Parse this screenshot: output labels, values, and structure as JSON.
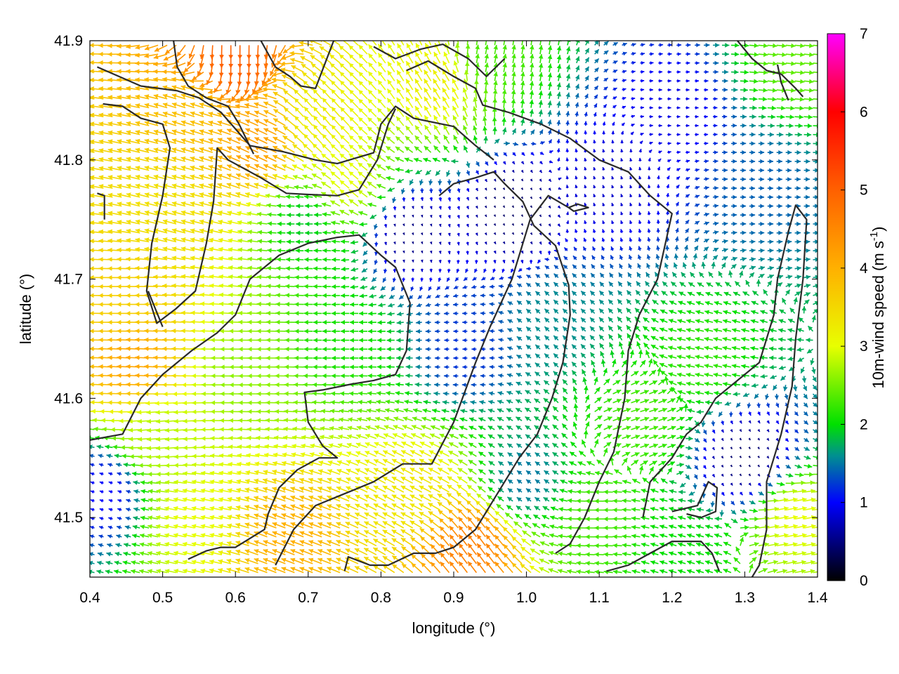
{
  "chart_data": {
    "type": "vector-field",
    "xlabel": "longitude (°)",
    "ylabel": "latitude (°)",
    "xlim": [
      0.4,
      1.4
    ],
    "ylim": [
      41.45,
      41.9
    ],
    "x_ticks": [
      {
        "value": 0.4,
        "label": "0.4"
      },
      {
        "value": 0.5,
        "label": "0.5"
      },
      {
        "value": 0.6,
        "label": "0.6"
      },
      {
        "value": 0.7,
        "label": "0.7"
      },
      {
        "value": 0.8,
        "label": "0.8"
      },
      {
        "value": 0.9,
        "label": "0.9"
      },
      {
        "value": 1.0,
        "label": "1.0"
      },
      {
        "value": 1.1,
        "label": "1.1"
      },
      {
        "value": 1.2,
        "label": "1.2"
      },
      {
        "value": 1.3,
        "label": "1.3"
      },
      {
        "value": 1.4,
        "label": "1.4"
      }
    ],
    "y_ticks": [
      {
        "value": 41.5,
        "label": "41.5"
      },
      {
        "value": 41.6,
        "label": "41.6"
      },
      {
        "value": 41.7,
        "label": "41.7"
      },
      {
        "value": 41.8,
        "label": "41.8"
      },
      {
        "value": 41.9,
        "label": "41.9"
      }
    ],
    "colorbar": {
      "label": "10m-wind speed (m s",
      "label_superscript": "-1",
      "label_suffix": ")",
      "range": [
        0,
        7
      ],
      "ticks": [
        {
          "value": 0,
          "label": "0"
        },
        {
          "value": 1,
          "label": "1"
        },
        {
          "value": 2,
          "label": "2"
        },
        {
          "value": 3,
          "label": "3"
        },
        {
          "value": 4,
          "label": "4"
        },
        {
          "value": 5,
          "label": "5"
        },
        {
          "value": 6,
          "label": "6"
        },
        {
          "value": 7,
          "label": "7"
        }
      ],
      "stops": [
        {
          "value": 0,
          "color": "#000000"
        },
        {
          "value": 1,
          "color": "#0000ff"
        },
        {
          "value": 1.6,
          "color": "#009090"
        },
        {
          "value": 2,
          "color": "#00e000"
        },
        {
          "value": 3,
          "color": "#e8ff00"
        },
        {
          "value": 4,
          "color": "#ffb000"
        },
        {
          "value": 5,
          "color": "#ff6000"
        },
        {
          "value": 6,
          "color": "#ff0000"
        },
        {
          "value": 7,
          "color": "#ff00ff"
        }
      ]
    },
    "grid": false,
    "vectors": {
      "lon_step": 0.0125,
      "lat_step": 0.0075,
      "speed_zones": [
        {
          "lon": 0.45,
          "lat": 41.68,
          "speed": 3.6,
          "u": -1,
          "v": 0
        },
        {
          "lon": 0.47,
          "lat": 41.63,
          "speed": 4.1,
          "u": -1,
          "v": 0.05
        },
        {
          "lon": 0.52,
          "lat": 41.76,
          "speed": 3.4,
          "u": -0.95,
          "v": 0.25
        },
        {
          "lon": 0.55,
          "lat": 41.84,
          "speed": 3.8,
          "u": -0.9,
          "v": 0.3
        },
        {
          "lon": 0.6,
          "lat": 41.89,
          "speed": 5.0,
          "u": 0,
          "v": -1
        },
        {
          "lon": 0.64,
          "lat": 41.81,
          "speed": 4.2,
          "u": -0.85,
          "v": 0.4
        },
        {
          "lon": 0.72,
          "lat": 41.83,
          "speed": 3.2,
          "u": -0.6,
          "v": 0.7
        },
        {
          "lon": 0.76,
          "lat": 41.78,
          "speed": 3.0,
          "u": -0.7,
          "v": 0.6
        },
        {
          "lon": 0.88,
          "lat": 41.86,
          "speed": 3.2,
          "u": -0.5,
          "v": 0.8
        },
        {
          "lon": 0.95,
          "lat": 41.88,
          "speed": 2.3,
          "u": 0.2,
          "v": 0.95
        },
        {
          "lon": 0.7,
          "lat": 41.75,
          "speed": 1.9,
          "u": -1,
          "v": 0
        },
        {
          "lon": 0.75,
          "lat": 41.65,
          "speed": 2.1,
          "u": -1,
          "v": 0
        },
        {
          "lon": 0.62,
          "lat": 41.62,
          "speed": 2.6,
          "u": -1,
          "v": 0
        },
        {
          "lon": 0.5,
          "lat": 41.57,
          "speed": 2.8,
          "u": -1,
          "v": -0.1
        },
        {
          "lon": 0.42,
          "lat": 41.52,
          "speed": 1.0,
          "u": -0.9,
          "v": 0.3
        },
        {
          "lon": 0.55,
          "lat": 41.5,
          "speed": 3.0,
          "u": -0.95,
          "v": 0.2
        },
        {
          "lon": 0.68,
          "lat": 41.48,
          "speed": 4.0,
          "u": -0.9,
          "v": 0.35
        },
        {
          "lon": 0.85,
          "lat": 41.52,
          "speed": 3.3,
          "u": -0.85,
          "v": 0.45
        },
        {
          "lon": 0.93,
          "lat": 41.47,
          "speed": 4.6,
          "u": -0.6,
          "v": 0.8
        },
        {
          "lon": 0.84,
          "lat": 41.74,
          "speed": 0.5,
          "u": 0.3,
          "v": -0.95
        },
        {
          "lon": 0.98,
          "lat": 41.76,
          "speed": 0.4,
          "u": 0.5,
          "v": -0.85
        },
        {
          "lon": 0.92,
          "lat": 41.64,
          "speed": 1.2,
          "u": -1,
          "v": 0
        },
        {
          "lon": 1.04,
          "lat": 41.66,
          "speed": 1.6,
          "u": -0.7,
          "v": 0.7
        },
        {
          "lon": 1.12,
          "lat": 41.78,
          "speed": 0.8,
          "u": -0.3,
          "v": 0.95
        },
        {
          "lon": 1.2,
          "lat": 41.84,
          "speed": 0.9,
          "u": 1,
          "v": 0
        },
        {
          "lon": 1.32,
          "lat": 41.78,
          "speed": 1.4,
          "u": 1,
          "v": 0
        },
        {
          "lon": 1.36,
          "lat": 41.88,
          "speed": 2.4,
          "u": 1,
          "v": -0.1
        },
        {
          "lon": 1.25,
          "lat": 41.63,
          "speed": 2.2,
          "u": -0.9,
          "v": 0.2
        },
        {
          "lon": 1.15,
          "lat": 41.58,
          "speed": 2.3,
          "u": 0.9,
          "v": 0.3
        },
        {
          "lon": 1.3,
          "lat": 41.55,
          "speed": 0.4,
          "u": 0.5,
          "v": -0.8
        },
        {
          "lon": 1.36,
          "lat": 41.5,
          "speed": 3.0,
          "u": 1,
          "v": 0.2
        },
        {
          "lon": 1.1,
          "lat": 41.5,
          "speed": 2.3,
          "u": -1,
          "v": 0
        },
        {
          "lon": 1.22,
          "lat": 41.47,
          "speed": 2.0,
          "u": -0.95,
          "v": 0.3
        },
        {
          "lon": 1.0,
          "lat": 41.53,
          "speed": 1.5,
          "u": -0.8,
          "v": 0.6
        }
      ]
    },
    "contours": [
      [
        [
          0.41,
          41.878
        ],
        [
          0.44,
          41.87
        ],
        [
          0.47,
          41.862
        ],
        [
          0.52,
          41.858
        ],
        [
          0.55,
          41.852
        ],
        [
          0.58,
          41.84
        ],
        [
          0.62,
          41.812
        ],
        [
          0.665,
          41.807
        ],
        [
          0.71,
          41.8
        ],
        [
          0.74,
          41.797
        ],
        [
          0.79,
          41.806
        ],
        [
          0.8,
          41.83
        ],
        [
          0.82,
          41.845
        ],
        [
          0.845,
          41.835
        ],
        [
          0.9,
          41.828
        ],
        [
          0.93,
          41.812
        ],
        [
          0.955,
          41.8
        ]
      ],
      [
        [
          0.418,
          41.847
        ],
        [
          0.445,
          41.845
        ],
        [
          0.47,
          41.835
        ],
        [
          0.5,
          41.83
        ],
        [
          0.51,
          41.81
        ],
        [
          0.5,
          41.77
        ],
        [
          0.485,
          41.73
        ],
        [
          0.478,
          41.69
        ],
        [
          0.492,
          41.663
        ],
        [
          0.518,
          41.675
        ],
        [
          0.545,
          41.69
        ],
        [
          0.56,
          41.73
        ],
        [
          0.57,
          41.765
        ],
        [
          0.575,
          41.81
        ],
        [
          0.59,
          41.8
        ],
        [
          0.635,
          41.785
        ],
        [
          0.67,
          41.772
        ],
        [
          0.7,
          41.771
        ],
        [
          0.74,
          41.77
        ],
        [
          0.77,
          41.775
        ],
        [
          0.795,
          41.8
        ],
        [
          0.81,
          41.83
        ],
        [
          0.82,
          41.843
        ]
      ],
      [
        [
          0.48,
          41.69
        ],
        [
          0.5,
          41.66
        ]
      ],
      [
        [
          0.515,
          41.9
        ],
        [
          0.52,
          41.878
        ],
        [
          0.535,
          41.862
        ],
        [
          0.56,
          41.852
        ],
        [
          0.59,
          41.845
        ],
        [
          0.605,
          41.83
        ],
        [
          0.625,
          41.805
        ]
      ],
      [
        [
          0.635,
          41.9
        ],
        [
          0.655,
          41.878
        ],
        [
          0.675,
          41.87
        ],
        [
          0.69,
          41.862
        ],
        [
          0.71,
          41.86
        ],
        [
          0.735,
          41.9
        ]
      ],
      [
        [
          0.79,
          41.895
        ],
        [
          0.82,
          41.885
        ],
        [
          0.855,
          41.893
        ],
        [
          0.885,
          41.897
        ],
        [
          0.92,
          41.885
        ],
        [
          0.945,
          41.87
        ],
        [
          0.97,
          41.885
        ]
      ],
      [
        [
          0.835,
          41.875
        ],
        [
          0.865,
          41.883
        ],
        [
          0.9,
          41.87
        ],
        [
          0.93,
          41.86
        ],
        [
          0.94,
          41.846
        ],
        [
          0.975,
          41.84
        ],
        [
          1.02,
          41.83
        ],
        [
          1.06,
          41.818
        ],
        [
          1.1,
          41.8
        ],
        [
          1.14,
          41.79
        ],
        [
          1.17,
          41.77
        ],
        [
          1.2,
          41.755
        ],
        [
          1.18,
          41.7
        ],
        [
          1.155,
          41.67
        ],
        [
          1.14,
          41.64
        ],
        [
          1.135,
          41.6
        ],
        [
          1.12,
          41.555
        ],
        [
          1.1,
          41.53
        ],
        [
          1.08,
          41.5
        ],
        [
          1.06,
          41.478
        ],
        [
          1.04,
          41.47
        ]
      ],
      [
        [
          0.88,
          41.77
        ],
        [
          0.9,
          41.78
        ],
        [
          0.93,
          41.785
        ],
        [
          0.955,
          41.79
        ],
        [
          0.97,
          41.78
        ],
        [
          0.995,
          41.765
        ],
        [
          1.01,
          41.745
        ],
        [
          1.04,
          41.728
        ],
        [
          1.058,
          41.695
        ],
        [
          1.06,
          41.67
        ],
        [
          1.05,
          41.63
        ],
        [
          1.035,
          41.6
        ],
        [
          1.015,
          41.57
        ],
        [
          0.99,
          41.55
        ],
        [
          0.97,
          41.53
        ],
        [
          0.955,
          41.515
        ],
        [
          0.93,
          41.49
        ],
        [
          0.9,
          41.475
        ],
        [
          0.875,
          41.47
        ],
        [
          0.845,
          41.47
        ],
        [
          0.81,
          41.46
        ],
        [
          0.785,
          41.46
        ],
        [
          0.755,
          41.467
        ],
        [
          0.75,
          41.455
        ]
      ],
      [
        [
          1.058,
          41.76
        ],
        [
          1.07,
          41.763
        ],
        [
          1.085,
          41.76
        ],
        [
          1.065,
          41.757
        ],
        [
          1.058,
          41.76
        ]
      ],
      [
        [
          0.4,
          41.565
        ],
        [
          0.445,
          41.57
        ],
        [
          0.47,
          41.6
        ],
        [
          0.5,
          41.62
        ],
        [
          0.54,
          41.64
        ],
        [
          0.575,
          41.655
        ],
        [
          0.6,
          41.67
        ],
        [
          0.62,
          41.7
        ],
        [
          0.66,
          41.72
        ],
        [
          0.7,
          41.73
        ],
        [
          0.74,
          41.735
        ],
        [
          0.77,
          41.737
        ],
        [
          0.8,
          41.72
        ],
        [
          0.82,
          41.71
        ],
        [
          0.84,
          41.68
        ],
        [
          0.835,
          41.64
        ],
        [
          0.82,
          41.62
        ],
        [
          0.79,
          41.615
        ],
        [
          0.76,
          41.612
        ],
        [
          0.72,
          41.607
        ],
        [
          0.695,
          41.605
        ],
        [
          0.7,
          41.58
        ],
        [
          0.72,
          41.56
        ],
        [
          0.74,
          41.55
        ],
        [
          0.715,
          41.55
        ],
        [
          0.685,
          41.54
        ],
        [
          0.66,
          41.525
        ],
        [
          0.645,
          41.503
        ],
        [
          0.64,
          41.49
        ],
        [
          0.6,
          41.475
        ],
        [
          0.58,
          41.475
        ],
        [
          0.56,
          41.472
        ],
        [
          0.535,
          41.465
        ]
      ],
      [
        [
          0.41,
          41.772
        ],
        [
          0.42,
          41.77
        ],
        [
          0.42,
          41.75
        ]
      ],
      [
        [
          0.655,
          41.46
        ],
        [
          0.68,
          41.49
        ],
        [
          0.71,
          41.51
        ],
        [
          0.75,
          41.52
        ],
        [
          0.79,
          41.53
        ],
        [
          0.83,
          41.545
        ],
        [
          0.87,
          41.545
        ],
        [
          0.9,
          41.58
        ],
        [
          0.93,
          41.63
        ],
        [
          0.95,
          41.66
        ],
        [
          0.98,
          41.7
        ],
        [
          1.005,
          41.75
        ],
        [
          1.03,
          41.77
        ],
        [
          1.058,
          41.76
        ]
      ],
      [
        [
          1.11,
          41.455
        ],
        [
          1.14,
          41.46
        ],
        [
          1.17,
          41.47
        ],
        [
          1.2,
          41.48
        ],
        [
          1.24,
          41.48
        ],
        [
          1.255,
          41.47
        ],
        [
          1.265,
          41.455
        ]
      ],
      [
        [
          1.2,
          41.505
        ],
        [
          1.235,
          41.51
        ],
        [
          1.25,
          41.53
        ],
        [
          1.262,
          41.525
        ],
        [
          1.26,
          41.505
        ],
        [
          1.24,
          41.5
        ],
        [
          1.22,
          41.503
        ]
      ],
      [
        [
          1.31,
          41.45
        ],
        [
          1.32,
          41.46
        ],
        [
          1.33,
          41.49
        ],
        [
          1.33,
          41.53
        ],
        [
          1.35,
          41.57
        ],
        [
          1.365,
          41.61
        ],
        [
          1.37,
          41.65
        ],
        [
          1.38,
          41.7
        ],
        [
          1.385,
          41.75
        ],
        [
          1.37,
          41.762
        ],
        [
          1.36,
          41.74
        ],
        [
          1.345,
          41.7
        ],
        [
          1.34,
          41.67
        ],
        [
          1.33,
          41.65
        ],
        [
          1.32,
          41.63
        ],
        [
          1.29,
          41.615
        ],
        [
          1.26,
          41.6
        ],
        [
          1.24,
          41.58
        ],
        [
          1.22,
          41.57
        ],
        [
          1.2,
          41.55
        ],
        [
          1.17,
          41.53
        ],
        [
          1.16,
          41.5
        ]
      ],
      [
        [
          1.29,
          41.9
        ],
        [
          1.31,
          41.885
        ],
        [
          1.33,
          41.875
        ],
        [
          1.35,
          41.872
        ],
        [
          1.37,
          41.86
        ],
        [
          1.38,
          41.853
        ]
      ],
      [
        [
          1.345,
          41.88
        ],
        [
          1.35,
          41.865
        ],
        [
          1.36,
          41.85
        ]
      ]
    ]
  }
}
